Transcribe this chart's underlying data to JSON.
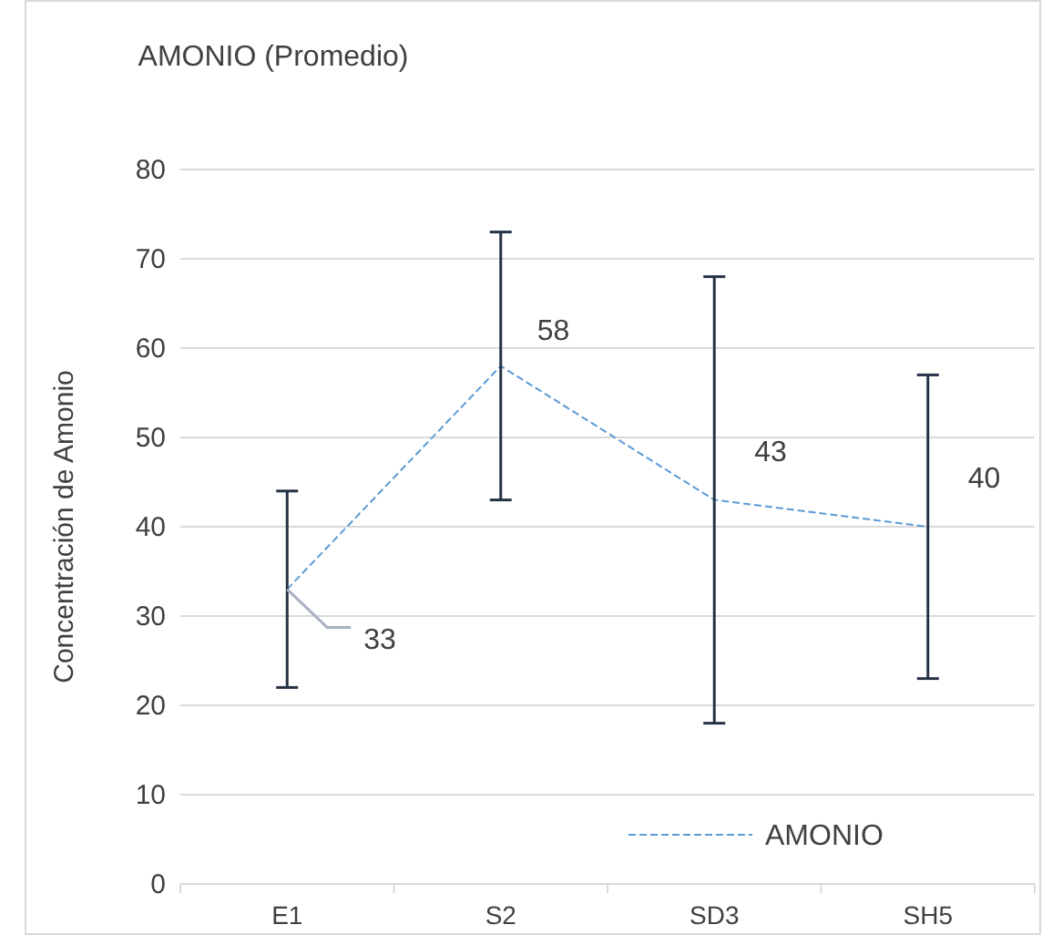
{
  "chart_data": {
    "type": "line",
    "title": "AMONIO (Promedio)",
    "ylabel": "Concentración de Amonio",
    "categories": [
      "E1",
      "S2",
      "SD3",
      "SH5"
    ],
    "series": [
      {
        "name": "AMONIO",
        "color": "#5b9bd5",
        "values": [
          33,
          58,
          43,
          40
        ],
        "errors": [
          11,
          15,
          25,
          17
        ]
      }
    ],
    "ylim": [
      0,
      80
    ],
    "yticks": [
      0,
      10,
      20,
      30,
      40,
      50,
      60,
      70,
      80
    ],
    "grid": "y",
    "legend": "bottom right",
    "marker": "none",
    "line_style": "dashed",
    "data_labels": true
  }
}
